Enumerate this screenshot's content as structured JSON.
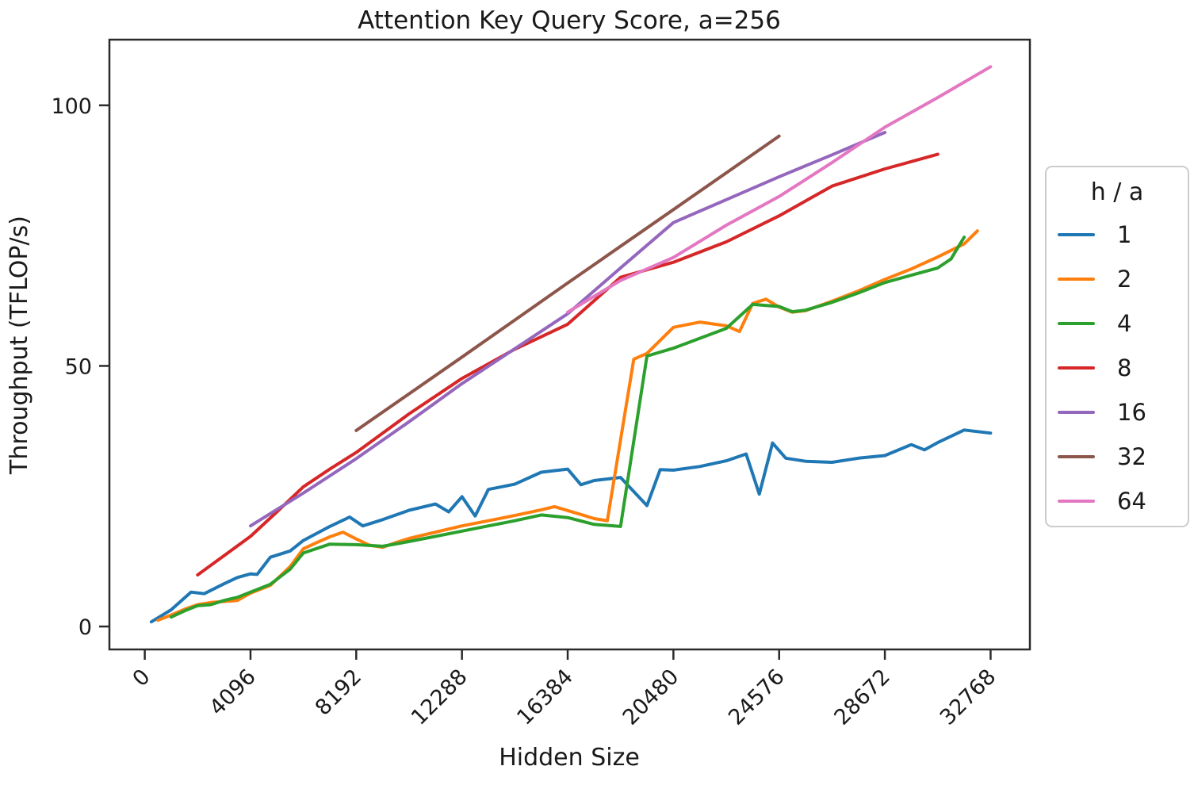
{
  "chart_data": {
    "type": "line",
    "title": "Attention Key Query Score, a=256",
    "xlabel": "Hidden Size",
    "ylabel": "Throughput (TFLOP/s)",
    "xlim": [
      -1370,
      34290
    ],
    "ylim": [
      -4.4,
      112.6
    ],
    "xticks": [
      0,
      4096,
      8192,
      12288,
      16384,
      20480,
      24576,
      28672,
      32768
    ],
    "yticks": [
      0,
      50,
      100
    ],
    "grid": false,
    "legend": {
      "title": "h / a",
      "position": "right-outside"
    },
    "axis_color": "#2b2b2b",
    "series": [
      {
        "name": "1",
        "color": "#1f77b4",
        "points": [
          [
            256,
            0.9
          ],
          [
            1024,
            3.2
          ],
          [
            1792,
            6.6
          ],
          [
            2304,
            6.3
          ],
          [
            3072,
            8.2
          ],
          [
            3584,
            9.4
          ],
          [
            4096,
            10.1
          ],
          [
            4352,
            10.0
          ],
          [
            4864,
            13.3
          ],
          [
            5632,
            14.5
          ],
          [
            6144,
            16.5
          ],
          [
            7168,
            19.2
          ],
          [
            7936,
            21.0
          ],
          [
            8448,
            19.3
          ],
          [
            9216,
            20.5
          ],
          [
            10240,
            22.3
          ],
          [
            11264,
            23.5
          ],
          [
            11776,
            22.0
          ],
          [
            12288,
            24.9
          ],
          [
            12800,
            21.2
          ],
          [
            13312,
            26.3
          ],
          [
            14336,
            27.3
          ],
          [
            15360,
            29.6
          ],
          [
            16384,
            30.2
          ],
          [
            16896,
            27.2
          ],
          [
            17408,
            28.0
          ],
          [
            18432,
            28.6
          ],
          [
            19456,
            23.2
          ],
          [
            19968,
            30.1
          ],
          [
            20480,
            30.0
          ],
          [
            21504,
            30.7
          ],
          [
            22528,
            31.8
          ],
          [
            23296,
            33.1
          ],
          [
            23808,
            25.4
          ],
          [
            24320,
            35.2
          ],
          [
            24832,
            32.3
          ],
          [
            25600,
            31.7
          ],
          [
            26624,
            31.5
          ],
          [
            27648,
            32.3
          ],
          [
            28672,
            32.8
          ],
          [
            29696,
            34.9
          ],
          [
            30208,
            33.9
          ],
          [
            30720,
            35.3
          ],
          [
            31744,
            37.7
          ],
          [
            32768,
            37.1
          ]
        ]
      },
      {
        "name": "2",
        "color": "#ff7f0e",
        "points": [
          [
            512,
            1.2
          ],
          [
            1024,
            2.2
          ],
          [
            1536,
            3.3
          ],
          [
            2048,
            4.2
          ],
          [
            2560,
            4.6
          ],
          [
            3072,
            4.8
          ],
          [
            3584,
            5.0
          ],
          [
            4096,
            6.4
          ],
          [
            4864,
            7.9
          ],
          [
            5632,
            11.5
          ],
          [
            6144,
            14.9
          ],
          [
            6656,
            16.1
          ],
          [
            7168,
            17.2
          ],
          [
            7680,
            18.1
          ],
          [
            8192,
            16.8
          ],
          [
            8704,
            15.6
          ],
          [
            9216,
            15.2
          ],
          [
            9728,
            16.1
          ],
          [
            10240,
            16.9
          ],
          [
            11264,
            18.1
          ],
          [
            12288,
            19.3
          ],
          [
            13312,
            20.3
          ],
          [
            14336,
            21.3
          ],
          [
            15360,
            22.4
          ],
          [
            15872,
            23.0
          ],
          [
            16896,
            21.5
          ],
          [
            17408,
            20.7
          ],
          [
            17920,
            20.3
          ],
          [
            18944,
            51.3
          ],
          [
            19456,
            52.4
          ],
          [
            20480,
            57.4
          ],
          [
            21504,
            58.4
          ],
          [
            22528,
            57.7
          ],
          [
            23040,
            56.6
          ],
          [
            23552,
            62.0
          ],
          [
            24064,
            62.8
          ],
          [
            24576,
            61.3
          ],
          [
            25088,
            60.3
          ],
          [
            25600,
            60.6
          ],
          [
            26624,
            62.4
          ],
          [
            27648,
            64.4
          ],
          [
            28672,
            66.6
          ],
          [
            29696,
            68.6
          ],
          [
            30720,
            70.9
          ],
          [
            31744,
            73.4
          ],
          [
            32256,
            75.9
          ]
        ]
      },
      {
        "name": "4",
        "color": "#2ca02c",
        "points": [
          [
            1024,
            1.8
          ],
          [
            1536,
            3.0
          ],
          [
            2048,
            4.0
          ],
          [
            2560,
            4.2
          ],
          [
            3072,
            5.0
          ],
          [
            3584,
            5.6
          ],
          [
            4096,
            6.6
          ],
          [
            4864,
            8.1
          ],
          [
            5632,
            11.0
          ],
          [
            6144,
            14.1
          ],
          [
            7168,
            15.8
          ],
          [
            8192,
            15.7
          ],
          [
            9216,
            15.4
          ],
          [
            10240,
            16.3
          ],
          [
            11264,
            17.3
          ],
          [
            12288,
            18.3
          ],
          [
            13312,
            19.3
          ],
          [
            14336,
            20.3
          ],
          [
            15360,
            21.4
          ],
          [
            16384,
            20.9
          ],
          [
            17408,
            19.6
          ],
          [
            18432,
            19.2
          ],
          [
            19456,
            51.9
          ],
          [
            20480,
            53.4
          ],
          [
            21504,
            55.3
          ],
          [
            22528,
            57.2
          ],
          [
            23552,
            61.8
          ],
          [
            24576,
            61.4
          ],
          [
            25088,
            60.4
          ],
          [
            25600,
            60.7
          ],
          [
            26624,
            62.2
          ],
          [
            27648,
            64.0
          ],
          [
            28672,
            66.0
          ],
          [
            29696,
            67.4
          ],
          [
            30720,
            68.8
          ],
          [
            31232,
            70.5
          ],
          [
            31744,
            74.7
          ]
        ]
      },
      {
        "name": "8",
        "color": "#d62728",
        "points": [
          [
            2048,
            9.9
          ],
          [
            3072,
            13.6
          ],
          [
            4096,
            17.3
          ],
          [
            5120,
            22.0
          ],
          [
            6144,
            26.8
          ],
          [
            7168,
            30.2
          ],
          [
            8192,
            33.4
          ],
          [
            10240,
            40.8
          ],
          [
            12288,
            47.6
          ],
          [
            14336,
            53.2
          ],
          [
            16384,
            58.0
          ],
          [
            18432,
            67.0
          ],
          [
            20480,
            69.9
          ],
          [
            22528,
            73.8
          ],
          [
            24576,
            78.8
          ],
          [
            26624,
            84.5
          ],
          [
            28672,
            87.8
          ],
          [
            30720,
            90.6
          ]
        ]
      },
      {
        "name": "16",
        "color": "#9467bd",
        "points": [
          [
            4096,
            19.3
          ],
          [
            6144,
            25.6
          ],
          [
            8192,
            32.2
          ],
          [
            10240,
            39.3
          ],
          [
            12288,
            46.6
          ],
          [
            14336,
            53.3
          ],
          [
            16384,
            60.0
          ],
          [
            18432,
            68.8
          ],
          [
            20480,
            77.5
          ],
          [
            22528,
            81.9
          ],
          [
            24576,
            86.3
          ],
          [
            26624,
            90.5
          ],
          [
            28672,
            94.8
          ]
        ]
      },
      {
        "name": "32",
        "color": "#8c564b",
        "points": [
          [
            8192,
            37.6
          ],
          [
            12288,
            51.7
          ],
          [
            16384,
            65.9
          ],
          [
            20480,
            80.0
          ],
          [
            24576,
            94.1
          ]
        ]
      },
      {
        "name": "64",
        "color": "#e377c2",
        "points": [
          [
            16384,
            60.3
          ],
          [
            18432,
            66.4
          ],
          [
            20480,
            70.8
          ],
          [
            22528,
            77.0
          ],
          [
            24576,
            82.5
          ],
          [
            26624,
            89.0
          ],
          [
            28672,
            95.8
          ],
          [
            30720,
            101.5
          ],
          [
            32768,
            107.4
          ]
        ]
      }
    ]
  }
}
